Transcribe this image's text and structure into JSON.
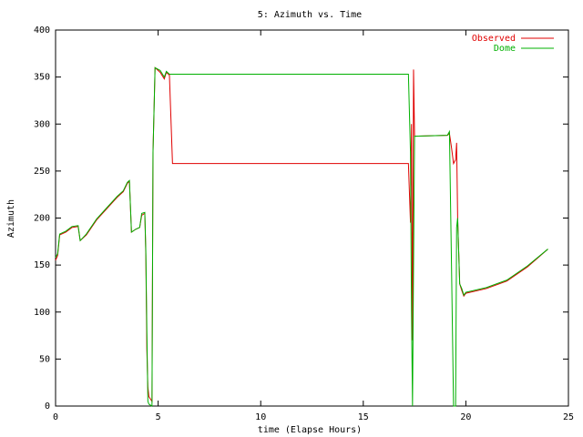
{
  "chart_data": {
    "type": "line",
    "title": "5: Azimuth vs. Time",
    "x_label": "time (Elapse Hours)",
    "y_label": "Azimuth",
    "x": [
      0,
      0.1,
      0.2,
      0.5,
      0.8,
      1.1,
      1.2,
      1.5,
      2,
      2.5,
      3,
      3.3,
      3.5,
      3.6,
      3.7,
      3.9,
      4.1,
      4.2,
      4.35,
      4.4,
      4.45,
      4.5,
      4.55,
      4.7,
      4.75,
      4.85,
      5.1,
      5.3,
      5.4,
      5.55,
      5.7,
      17.2,
      17.3,
      17.35,
      17.4,
      17.45,
      17.5,
      19.1,
      19.2,
      19.3,
      19.4,
      19.5,
      19.55,
      19.6,
      19.7,
      19.8,
      19.9,
      20,
      21,
      22,
      23,
      24
    ],
    "series": [
      {
        "name": "Observed",
        "color": "#e00000",
        "values": [
          155,
          160,
          182,
          185,
          190,
          191,
          176,
          182,
          198,
          210,
          222,
          228,
          237,
          239,
          185,
          188,
          190,
          203,
          205,
          160,
          60,
          20,
          10,
          5,
          270,
          360,
          355,
          348,
          355,
          352,
          258,
          258,
          195,
          300,
          70,
          358,
          287,
          288,
          290,
          275,
          258,
          262,
          280,
          200,
          130,
          123,
          117,
          120,
          125,
          133,
          148,
          167
        ]
      },
      {
        "name": "Dome",
        "color": "#00b000",
        "values": [
          158,
          162,
          183,
          186,
          191,
          192,
          176,
          183,
          199,
          211,
          223,
          229,
          238,
          240,
          185,
          188,
          190,
          205,
          206,
          165,
          80,
          5,
          2,
          0,
          270,
          360,
          357,
          350,
          356,
          353,
          353,
          353,
          270,
          100,
          0,
          150,
          287,
          288,
          292,
          150,
          0,
          0,
          190,
          200,
          130,
          125,
          118,
          121,
          126,
          134,
          149,
          167
        ]
      }
    ],
    "xlim": [
      0,
      25
    ],
    "xticks": [
      0,
      5,
      10,
      15,
      20,
      25
    ],
    "ylim": [
      0,
      400
    ],
    "yticks": [
      0,
      50,
      100,
      150,
      200,
      250,
      300,
      350,
      400
    ],
    "grid": false,
    "legend": "top-right"
  }
}
